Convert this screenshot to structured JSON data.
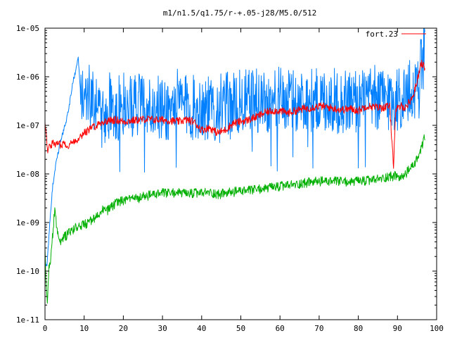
{
  "chart_data": {
    "type": "line",
    "title": "m1/n1.5/q1.75/r-+.05-j28/M5.0/512",
    "xlabel": "",
    "ylabel": "",
    "xlim": [
      0,
      100
    ],
    "ylim": [
      1e-11,
      1e-05
    ],
    "yscale": "log",
    "grid": false,
    "legend_position": "top-right",
    "x_ticks": [
      0,
      10,
      20,
      30,
      40,
      50,
      60,
      70,
      80,
      90,
      100
    ],
    "x_tick_labels": [
      "0",
      "10",
      "20",
      "30",
      "40",
      "50",
      "60",
      "70",
      "80",
      "90",
      "100"
    ],
    "y_ticks": [
      1e-11,
      1e-10,
      1e-09,
      1e-08,
      1e-07,
      1e-06,
      1e-05
    ],
    "y_tick_labels": [
      "1e-11",
      "1e-10",
      "1e-09",
      "1e-08",
      "1e-07",
      "1e-06",
      "1e-05"
    ],
    "series": [
      {
        "name": "fort.23",
        "color": "#ff0000",
        "noise": 0.08,
        "x": [
          0,
          0.3,
          0.6,
          1,
          1.5,
          2,
          3,
          4,
          5,
          6,
          7,
          8,
          9,
          10,
          12,
          14,
          16,
          18,
          20,
          22,
          24,
          26,
          28,
          30,
          32,
          34,
          36,
          38,
          40,
          42,
          44,
          46,
          48,
          50,
          52,
          54,
          56,
          58,
          60,
          62,
          64,
          66,
          68,
          70,
          72,
          74,
          76,
          78,
          80,
          82,
          84,
          86,
          88,
          89,
          89.5,
          90,
          91,
          92,
          93,
          94,
          95,
          96,
          97
        ],
        "y": [
          1e-07,
          8e-08,
          3e-08,
          3.5e-08,
          4e-08,
          4.2e-08,
          4.2e-08,
          4e-08,
          4.3e-08,
          3.8e-08,
          4.5e-08,
          5e-08,
          6e-08,
          7e-08,
          9e-08,
          1.1e-07,
          1.25e-07,
          1.3e-07,
          1.2e-07,
          1.25e-07,
          1.3e-07,
          1.35e-07,
          1.3e-07,
          1.3e-07,
          1.25e-07,
          1.2e-07,
          1.3e-07,
          1.2e-07,
          8e-08,
          9e-08,
          7e-08,
          8e-08,
          1.1e-07,
          1.2e-07,
          1.3e-07,
          1.5e-07,
          1.8e-07,
          2e-07,
          2e-07,
          1.8e-07,
          2e-07,
          2.2e-07,
          2.3e-07,
          2.5e-07,
          2.4e-07,
          2.2e-07,
          2.1e-07,
          2.2e-07,
          2e-07,
          2.5e-07,
          2.4e-07,
          2.3e-07,
          2.5e-07,
          1.5e-08,
          1.8e-07,
          2.2e-07,
          2.5e-07,
          2.3e-07,
          3e-07,
          4e-07,
          8e-07,
          2e-06,
          1.5e-06
        ]
      },
      {
        "name": "",
        "color": "#0080ff",
        "noise": 0.7,
        "x": [
          0,
          0.5,
          1,
          1.5,
          2,
          3,
          4,
          5,
          6,
          7,
          8,
          8.5,
          9,
          10,
          11,
          12,
          14,
          16,
          17,
          18,
          20,
          22,
          23,
          24,
          26,
          28,
          30,
          32,
          34,
          36,
          38,
          40,
          42,
          44,
          46,
          48,
          50,
          52,
          54,
          56,
          57,
          58,
          60,
          62,
          64,
          66,
          68,
          70,
          72,
          74,
          76,
          78,
          80,
          82,
          84,
          86,
          88,
          90,
          92,
          94,
          95,
          96,
          97
        ],
        "y": [
          1.5e-10,
          1.2e-10,
          5e-10,
          2e-09,
          6e-09,
          2e-08,
          5e-08,
          9e-08,
          2e-07,
          7e-07,
          1.5e-06,
          2.5e-06,
          6e-07,
          5e-07,
          4e-07,
          3e-07,
          1.5e-07,
          2e-07,
          3e-07,
          2e-07,
          2.5e-07,
          2e-07,
          3e-07,
          2.5e-07,
          2e-07,
          2.5e-07,
          2e-07,
          2.2e-07,
          3e-07,
          2.5e-07,
          2.2e-07,
          2.5e-07,
          2e-07,
          2.2e-07,
          2.5e-07,
          2.5e-07,
          2.8e-07,
          3e-07,
          3e-07,
          3.2e-07,
          3e-07,
          3e-07,
          3.2e-07,
          3e-07,
          3e-07,
          3.2e-07,
          3e-07,
          3.2e-07,
          3.5e-07,
          3e-07,
          3e-07,
          3.2e-07,
          3.2e-07,
          3e-07,
          3.5e-07,
          3.5e-07,
          3.5e-07,
          3.5e-07,
          4e-07,
          5e-07,
          7e-07,
          1.5e-06,
          3e-06
        ]
      },
      {
        "name": "",
        "color": "#00b000",
        "noise": 0.1,
        "x": [
          0,
          0.3,
          0.6,
          1,
          1.5,
          2,
          2.5,
          3,
          4,
          5,
          6,
          8,
          10,
          12,
          14,
          15,
          16,
          18,
          20,
          22,
          24,
          26,
          28,
          30,
          32,
          34,
          36,
          38,
          40,
          42,
          44,
          46,
          48,
          50,
          52,
          54,
          56,
          58,
          60,
          62,
          64,
          66,
          68,
          70,
          72,
          74,
          76,
          78,
          80,
          82,
          84,
          86,
          88,
          90,
          91,
          92,
          93,
          94,
          95,
          96,
          97
        ],
        "y": [
          3e-10,
          5e-11,
          2.5e-11,
          1.2e-10,
          2e-10,
          6e-10,
          2e-09,
          8e-10,
          4e-10,
          5e-10,
          6e-10,
          8e-10,
          9e-10,
          1.1e-09,
          1.4e-09,
          2e-09,
          1.8e-09,
          2.5e-09,
          2.8e-09,
          3e-09,
          3.2e-09,
          3.5e-09,
          3.8e-09,
          4e-09,
          4e-09,
          4.2e-09,
          3.8e-09,
          4e-09,
          4e-09,
          4.2e-09,
          3.8e-09,
          4e-09,
          4.2e-09,
          4.5e-09,
          4.5e-09,
          4.8e-09,
          5e-09,
          5.2e-09,
          5.5e-09,
          5.8e-09,
          6e-09,
          6.5e-09,
          6.8e-09,
          7e-09,
          7e-09,
          7e-09,
          7e-09,
          6.8e-09,
          7e-09,
          7.2e-09,
          7.5e-09,
          8e-09,
          9e-09,
          9e-09,
          8e-09,
          1e-08,
          1.2e-08,
          1.5e-08,
          2e-08,
          3e-08,
          6e-08
        ]
      }
    ]
  }
}
